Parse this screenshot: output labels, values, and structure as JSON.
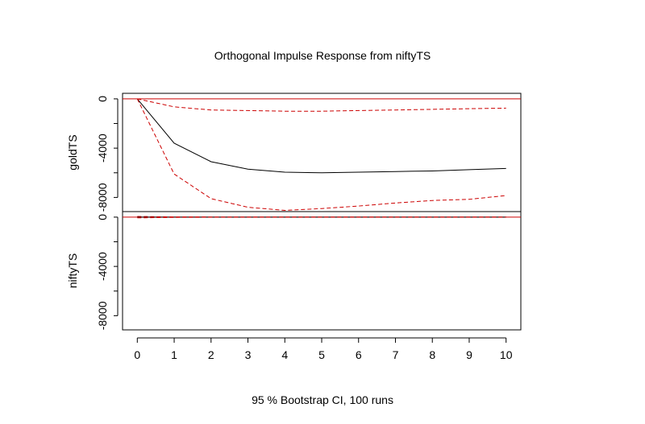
{
  "chart_data": {
    "type": "line",
    "title": "Orthogonal Impulse Response from niftyTS",
    "footer": "95 % Bootstrap CI,  100 runs",
    "x": [
      0,
      1,
      2,
      3,
      4,
      5,
      6,
      7,
      8,
      9,
      10
    ],
    "xlim": [
      -0.4,
      10.4
    ],
    "x_ticks": [
      "0",
      "1",
      "2",
      "3",
      "4",
      "5",
      "6",
      "7",
      "8",
      "9",
      "10"
    ],
    "colors": {
      "response": "#000000",
      "ci": "#cc0000",
      "zero": "#cc0000"
    },
    "panels": [
      {
        "ylabel": "goldTS",
        "ylim": [
          -9150,
          450
        ],
        "y_ticks": [
          0,
          -4000,
          -8000
        ],
        "y_tick_labels": [
          "0",
          "-4000",
          "-8000"
        ],
        "series": [
          {
            "role": "response",
            "values": [
              0,
              -3600,
              -5100,
              -5700,
              -5950,
              -6000,
              -5950,
              -5900,
              -5850,
              -5750,
              -5650
            ]
          },
          {
            "role": "ci_upper",
            "values": [
              0,
              -650,
              -900,
              -950,
              -1000,
              -1000,
              -950,
              -900,
              -850,
              -800,
              -750
            ]
          },
          {
            "role": "ci_lower",
            "values": [
              0,
              -6100,
              -8100,
              -8800,
              -9050,
              -8900,
              -8700,
              -8450,
              -8250,
              -8150,
              -7850
            ]
          }
        ]
      },
      {
        "ylabel": "niftyTS",
        "ylim": [
          -9150,
          450
        ],
        "y_ticks": [
          0,
          -4000,
          -8000
        ],
        "y_tick_labels": [
          "0",
          "-4000",
          "-8000"
        ],
        "series": [
          {
            "role": "response",
            "values": [
              0,
              0,
              0,
              0,
              0,
              0,
              0,
              0,
              0,
              0,
              0
            ]
          },
          {
            "role": "ci_upper",
            "values": [
              60,
              20,
              10,
              10,
              10,
              10,
              10,
              10,
              10,
              10,
              10
            ]
          },
          {
            "role": "ci_lower",
            "values": [
              -60,
              -20,
              -10,
              -10,
              -10,
              -10,
              -10,
              -10,
              -10,
              -10,
              -10
            ]
          }
        ]
      }
    ]
  }
}
